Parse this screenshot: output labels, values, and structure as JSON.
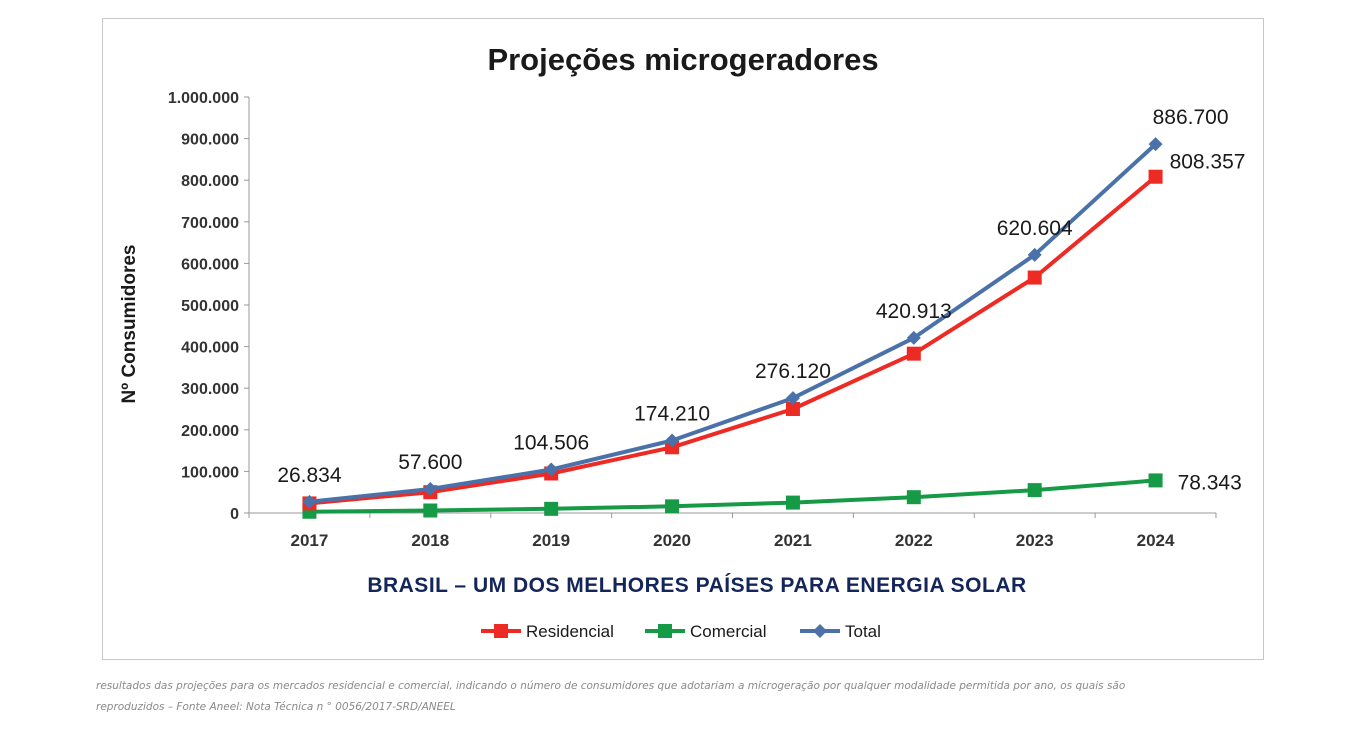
{
  "chart_data": {
    "type": "line",
    "title": "Projeções microgeradores",
    "subtitle": "BRASIL – UM DOS MELHORES PAÍSES PARA ENERGIA SOLAR",
    "xlabel": "",
    "ylabel": "Nº Consumidores",
    "categories": [
      "2017",
      "2018",
      "2019",
      "2020",
      "2021",
      "2022",
      "2023",
      "2024"
    ],
    "ylim": [
      0,
      1000000
    ],
    "yticks": [
      "0",
      "100.000",
      "200.000",
      "300.000",
      "400.000",
      "500.000",
      "600.000",
      "700.000",
      "800.000",
      "900.000",
      "1.000.000"
    ],
    "grid": false,
    "legend_position": "bottom",
    "series": [
      {
        "name": "Residencial",
        "color": "#ee2a24",
        "marker": "square",
        "values": [
          23000,
          50000,
          95000,
          158000,
          250000,
          383000,
          566000,
          808357
        ]
      },
      {
        "name": "Comercial",
        "color": "#169a46",
        "marker": "square",
        "values": [
          3000,
          6000,
          10000,
          16000,
          25000,
          38000,
          55000,
          78343
        ]
      },
      {
        "name": "Total",
        "color": "#4a72a8",
        "marker": "diamond",
        "values": [
          26834,
          57600,
          104506,
          174210,
          276120,
          420913,
          620604,
          886700
        ]
      }
    ],
    "data_labels": {
      "total": [
        "26.834",
        "57.600",
        "104.506",
        "174.210",
        "276.120",
        "420.913",
        "620.604",
        "886.700"
      ],
      "residencial_last": "808.357",
      "comercial_last": "78.343"
    }
  },
  "caption": {
    "line1": "resultados das projeções para os mercados residencial e comercial, indicando o número de consumidores que adotariam a microgeração por qualquer modalidade permitida por ano, os quais são",
    "line2": "reproduzidos – Fonte Aneel: Nota Técnica n °  0056/2017-SRD/ANEEL"
  }
}
